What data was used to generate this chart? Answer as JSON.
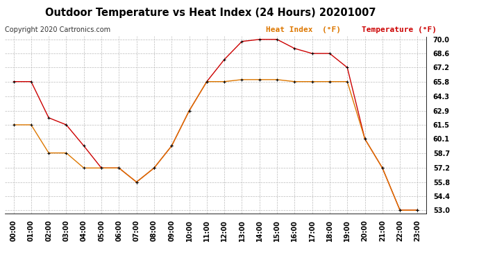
{
  "title": "Outdoor Temperature vs Heat Index (24 Hours) 20201007",
  "copyright": "Copyright 2020 Cartronics.com",
  "legend_heat": "Heat Index  (°F)",
  "legend_temp": "Temperature (°F)",
  "hours": [
    "00:00",
    "01:00",
    "02:00",
    "03:00",
    "04:00",
    "05:00",
    "06:00",
    "07:00",
    "08:00",
    "09:00",
    "10:00",
    "11:00",
    "12:00",
    "13:00",
    "14:00",
    "15:00",
    "16:00",
    "17:00",
    "18:00",
    "19:00",
    "20:00",
    "21:00",
    "22:00",
    "23:00"
  ],
  "temperature": [
    65.8,
    65.8,
    62.2,
    61.5,
    59.4,
    57.2,
    57.2,
    55.8,
    57.2,
    59.4,
    62.9,
    65.8,
    68.0,
    69.8,
    70.0,
    70.0,
    69.1,
    68.6,
    68.6,
    67.2,
    60.1,
    57.2,
    53.0,
    53.0
  ],
  "heat_index": [
    61.5,
    61.5,
    58.7,
    58.7,
    57.2,
    57.2,
    57.2,
    55.8,
    57.2,
    59.4,
    62.9,
    65.8,
    65.8,
    66.0,
    66.0,
    66.0,
    65.8,
    65.8,
    65.8,
    65.8,
    60.1,
    57.2,
    53.0,
    53.0
  ],
  "temp_color": "#cc0000",
  "heat_color": "#dd7700",
  "marker_color": "#000000",
  "ylim_min": 52.7,
  "ylim_max": 70.3,
  "yticks": [
    53.0,
    54.4,
    55.8,
    57.2,
    58.7,
    60.1,
    61.5,
    62.9,
    64.3,
    65.8,
    67.2,
    68.6,
    70.0
  ],
  "background_color": "#ffffff",
  "grid_color": "#bbbbbb",
  "title_fontsize": 10.5,
  "tick_fontsize": 7,
  "copyright_fontsize": 7,
  "legend_fontsize": 8
}
